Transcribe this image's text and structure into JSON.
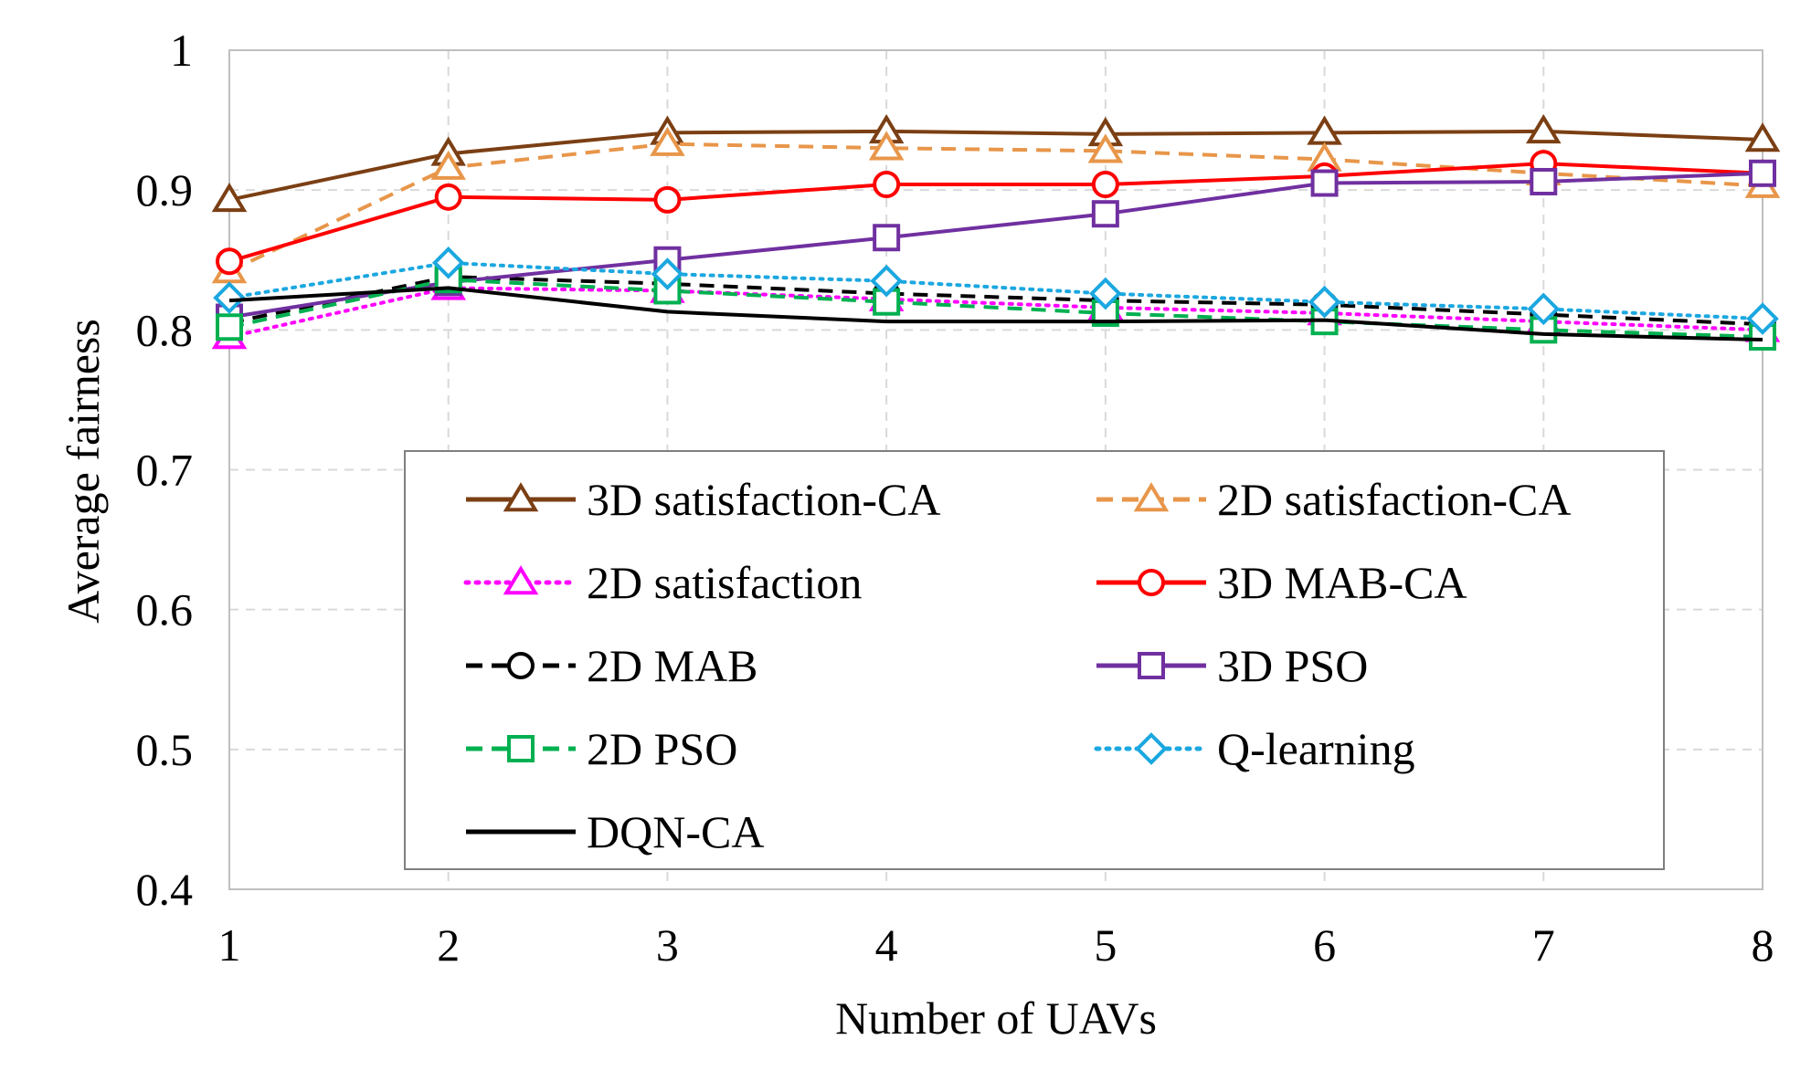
{
  "chart_data": {
    "type": "line",
    "title": "",
    "xlabel": "Number of UAVs",
    "ylabel": "Average fairness",
    "x": [
      1,
      2,
      3,
      4,
      5,
      6,
      7,
      8
    ],
    "xticks": [
      "1",
      "2",
      "3",
      "4",
      "5",
      "6",
      "7",
      "8"
    ],
    "ylim": [
      0.4,
      1.0
    ],
    "yticks": [
      "0.4",
      "0.5",
      "0.6",
      "0.7",
      "0.8",
      "0.9",
      "1"
    ],
    "grid": true,
    "legend_position": "lower-center",
    "series": [
      {
        "name": "3D satisfaction-CA",
        "color": "#7B3F14",
        "dash": "solid",
        "marker": "triangle",
        "values": [
          0.893,
          0.926,
          0.941,
          0.942,
          0.94,
          0.941,
          0.942,
          0.936
        ]
      },
      {
        "name": "2D satisfaction-CA",
        "color": "#E8964A",
        "dash": "dashed",
        "marker": "triangle",
        "values": [
          0.842,
          0.916,
          0.933,
          0.93,
          0.928,
          0.922,
          0.912,
          0.903
        ]
      },
      {
        "name": "2D satisfaction",
        "color": "#FF00FF",
        "dash": "dotted",
        "marker": "triangle",
        "values": [
          0.795,
          0.83,
          0.828,
          0.822,
          0.816,
          0.812,
          0.806,
          0.8
        ]
      },
      {
        "name": "3D MAB-CA",
        "color": "#FF0000",
        "dash": "solid",
        "marker": "circle",
        "values": [
          0.849,
          0.895,
          0.893,
          0.904,
          0.904,
          0.91,
          0.919,
          0.912
        ]
      },
      {
        "name": "2D MAB",
        "color": "#000000",
        "dash": "dashed",
        "marker": "circle",
        "values": [
          0.805,
          0.838,
          0.833,
          0.826,
          0.821,
          0.818,
          0.811,
          0.804
        ]
      },
      {
        "name": "3D PSO",
        "color": "#7030A0",
        "dash": "solid",
        "marker": "square",
        "values": [
          0.809,
          0.834,
          0.85,
          0.866,
          0.883,
          0.905,
          0.906,
          0.912
        ]
      },
      {
        "name": "2D PSO",
        "color": "#00B050",
        "dash": "dashed",
        "marker": "square",
        "values": [
          0.802,
          0.836,
          0.828,
          0.82,
          0.812,
          0.806,
          0.8,
          0.795
        ]
      },
      {
        "name": "Q-learning",
        "color": "#1BA7E0",
        "dash": "dotted",
        "marker": "diamond",
        "values": [
          0.823,
          0.848,
          0.84,
          0.835,
          0.826,
          0.82,
          0.815,
          0.808
        ]
      },
      {
        "name": "DQN-CA",
        "color": "#000000",
        "dash": "solid",
        "marker": "none",
        "values": [
          0.821,
          0.83,
          0.813,
          0.806,
          0.806,
          0.807,
          0.797,
          0.793
        ]
      }
    ]
  }
}
